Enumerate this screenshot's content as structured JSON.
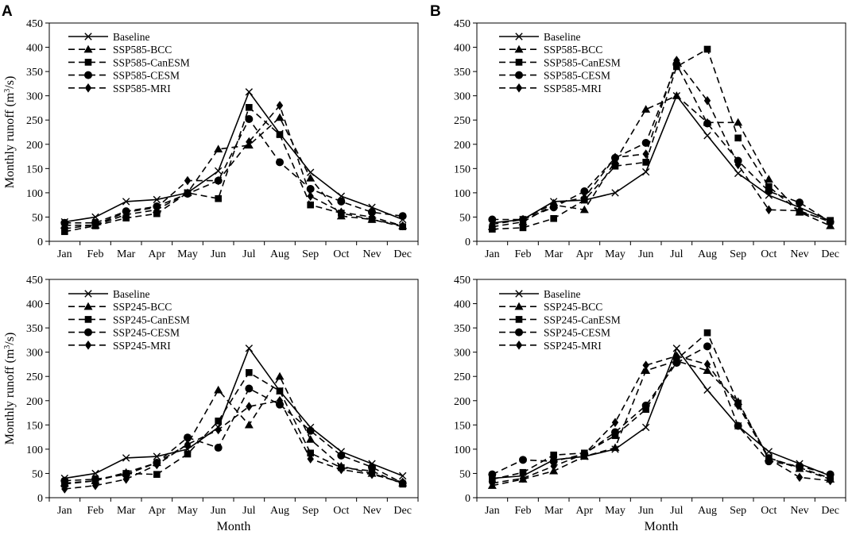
{
  "figure": {
    "panel_labels": [
      "A",
      "B"
    ],
    "xlabel": "Month",
    "ylabel": "Monthly runoff (m³/s)"
  },
  "chart_data": [
    {
      "type": "line",
      "panel": "A",
      "scenario": "SSP585",
      "categories": [
        "Jan",
        "Feb",
        "Mar",
        "Apr",
        "May",
        "Jun",
        "Jul",
        "Aug",
        "Sep",
        "Oct",
        "Nev",
        "Dec"
      ],
      "ylim": [
        0,
        450
      ],
      "yticks": [
        0,
        50,
        100,
        150,
        200,
        250,
        300,
        350,
        400,
        450
      ],
      "ylabel": "Monthly runoff (m³/s)",
      "xlabel": "",
      "series": [
        {
          "name": "Baseline",
          "marker": "x",
          "dash": "solid",
          "values": [
            40,
            50,
            82,
            86,
            100,
            145,
            308,
            222,
            142,
            93,
            70,
            45
          ]
        },
        {
          "name": "SSP585-BCC",
          "marker": "triangle",
          "dash": "dashed",
          "values": [
            33,
            33,
            55,
            65,
            100,
            190,
            198,
            255,
            130,
            52,
            45,
            32
          ]
        },
        {
          "name": "SSP585-CanESM",
          "marker": "square",
          "dash": "dashed",
          "values": [
            20,
            32,
            48,
            57,
            100,
            88,
            276,
            220,
            75,
            58,
            45,
            30
          ]
        },
        {
          "name": "SSP585-CESM",
          "marker": "circle",
          "dash": "dashed",
          "values": [
            38,
            38,
            62,
            72,
            98,
            125,
            252,
            163,
            108,
            82,
            60,
            52
          ]
        },
        {
          "name": "SSP585-MRI",
          "marker": "diamond",
          "dash": "dashed",
          "values": [
            26,
            34,
            60,
            70,
            125,
            125,
            205,
            280,
            93,
            60,
            50,
            32
          ]
        }
      ]
    },
    {
      "type": "line",
      "panel": "B",
      "scenario": "SSP585",
      "categories": [
        "Jan",
        "Feb",
        "Mar",
        "Apr",
        "May",
        "Jun",
        "Jul",
        "Aug",
        "Sep",
        "Oct",
        "Nev",
        "Dec"
      ],
      "ylim": [
        0,
        450
      ],
      "yticks": [
        0,
        50,
        100,
        150,
        200,
        250,
        300,
        350,
        400,
        450
      ],
      "ylabel": "",
      "xlabel": "",
      "series": [
        {
          "name": "Baseline",
          "marker": "x",
          "dash": "solid",
          "values": [
            38,
            45,
            82,
            85,
            100,
            143,
            300,
            218,
            140,
            95,
            70,
            42
          ]
        },
        {
          "name": "SSP585-BCC",
          "marker": "triangle",
          "dash": "dashed",
          "values": [
            30,
            40,
            75,
            65,
            165,
            272,
            300,
            245,
            245,
            128,
            60,
            32
          ]
        },
        {
          "name": "SSP585-CanESM",
          "marker": "square",
          "dash": "dashed",
          "values": [
            25,
            28,
            47,
            85,
            155,
            163,
            360,
            396,
            213,
            113,
            60,
            43
          ]
        },
        {
          "name": "SSP585-CESM",
          "marker": "circle",
          "dash": "dashed",
          "values": [
            45,
            45,
            70,
            103,
            172,
            203,
            365,
            243,
            166,
            103,
            80,
            40
          ]
        },
        {
          "name": "SSP585-MRI",
          "marker": "diamond",
          "dash": "dashed",
          "values": [
            35,
            45,
            78,
            90,
            173,
            180,
            373,
            290,
            158,
            65,
            63,
            40
          ]
        }
      ]
    },
    {
      "type": "line",
      "panel": "A",
      "scenario": "SSP245",
      "categories": [
        "Jan",
        "Feb",
        "Mar",
        "Apr",
        "May",
        "Jun",
        "Jul",
        "Aug",
        "Sep",
        "Oct",
        "Nev",
        "Dec"
      ],
      "ylim": [
        0,
        450
      ],
      "yticks": [
        0,
        50,
        100,
        150,
        200,
        250,
        300,
        350,
        400,
        450
      ],
      "ylabel": "Monthly runoff (m³/s)",
      "xlabel": "Month",
      "series": [
        {
          "name": "Baseline",
          "marker": "x",
          "dash": "solid",
          "values": [
            40,
            50,
            82,
            85,
            100,
            145,
            308,
            220,
            145,
            95,
            70,
            45
          ]
        },
        {
          "name": "SSP245-BCC",
          "marker": "triangle",
          "dash": "dashed",
          "values": [
            30,
            35,
            52,
            72,
            110,
            222,
            150,
            250,
            120,
            65,
            50,
            30
          ]
        },
        {
          "name": "SSP245-CanESM",
          "marker": "square",
          "dash": "dashed",
          "values": [
            28,
            35,
            50,
            48,
            90,
            158,
            258,
            220,
            92,
            62,
            55,
            28
          ]
        },
        {
          "name": "SSP245-CESM",
          "marker": "circle",
          "dash": "dashed",
          "values": [
            35,
            38,
            48,
            72,
            124,
            103,
            225,
            192,
            138,
            87,
            63,
            30
          ]
        },
        {
          "name": "SSP245-MRI",
          "marker": "diamond",
          "dash": "dashed",
          "values": [
            18,
            25,
            38,
            68,
            110,
            140,
            188,
            200,
            80,
            58,
            48,
            32
          ]
        }
      ]
    },
    {
      "type": "line",
      "panel": "B",
      "scenario": "SSP245",
      "categories": [
        "Jan",
        "Feb",
        "Mar",
        "Apr",
        "May",
        "Jun",
        "Jul",
        "Aug",
        "Sep",
        "Oct",
        "Nev",
        "Dec"
      ],
      "ylim": [
        0,
        450
      ],
      "yticks": [
        0,
        50,
        100,
        150,
        200,
        250,
        300,
        350,
        400,
        450
      ],
      "ylabel": "",
      "xlabel": "Month",
      "series": [
        {
          "name": "Baseline",
          "marker": "x",
          "dash": "solid",
          "values": [
            40,
            45,
            78,
            85,
            100,
            145,
            308,
            222,
            148,
            95,
            70,
            45
          ]
        },
        {
          "name": "SSP245-BCC",
          "marker": "triangle",
          "dash": "dashed",
          "values": [
            25,
            38,
            55,
            85,
            103,
            262,
            282,
            262,
            198,
            82,
            60,
            38
          ]
        },
        {
          "name": "SSP245-CanESM",
          "marker": "square",
          "dash": "dashed",
          "values": [
            38,
            52,
            88,
            92,
            128,
            182,
            285,
            340,
            195,
            82,
            62,
            40
          ]
        },
        {
          "name": "SSP245-CESM",
          "marker": "circle",
          "dash": "dashed",
          "values": [
            48,
            78,
            75,
            90,
            135,
            190,
            278,
            312,
            148,
            75,
            65,
            48
          ]
        },
        {
          "name": "SSP245-MRI",
          "marker": "diamond",
          "dash": "dashed",
          "values": [
            30,
            40,
            65,
            90,
            155,
            273,
            292,
            275,
            190,
            80,
            42,
            35
          ]
        }
      ]
    }
  ]
}
